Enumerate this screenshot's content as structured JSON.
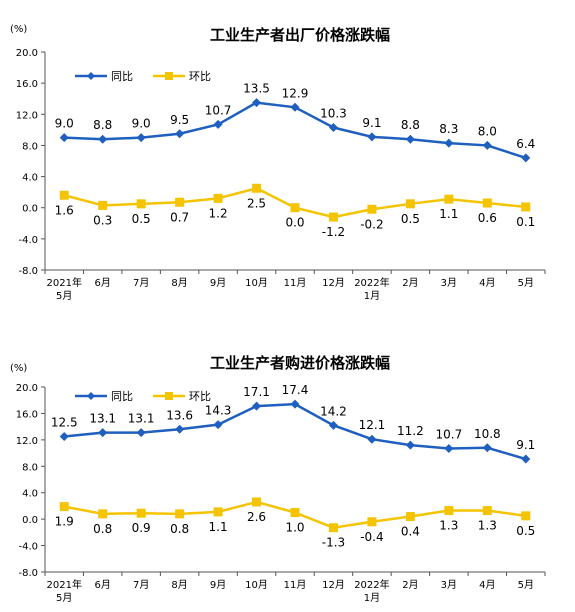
{
  "chart_data": [
    {
      "type": "line",
      "title": "工业生产者出厂价格涨跌幅",
      "ylabel": "(%)",
      "ylim": [
        -8.0,
        20.0
      ],
      "yticks": [
        "20.0",
        "16.0",
        "12.0",
        "8.0",
        "4.0",
        "0.0",
        "-4.0",
        "-8.0"
      ],
      "ytick_values": [
        20,
        16,
        12,
        8,
        4,
        0,
        -4,
        -8
      ],
      "categories": [
        {
          "l1": "2021年",
          "l2": "5月"
        },
        {
          "l1": "6月",
          "l2": ""
        },
        {
          "l1": "7月",
          "l2": ""
        },
        {
          "l1": "8月",
          "l2": ""
        },
        {
          "l1": "9月",
          "l2": ""
        },
        {
          "l1": "10月",
          "l2": ""
        },
        {
          "l1": "11月",
          "l2": ""
        },
        {
          "l1": "12月",
          "l2": ""
        },
        {
          "l1": "2022年",
          "l2": "1月"
        },
        {
          "l1": "2月",
          "l2": ""
        },
        {
          "l1": "3月",
          "l2": ""
        },
        {
          "l1": "4月",
          "l2": ""
        },
        {
          "l1": "5月",
          "l2": ""
        }
      ],
      "legend_position": "top-left",
      "grid": false,
      "series": [
        {
          "name": "同比",
          "color": "#1f5fbf",
          "marker": "diamond",
          "values": [
            9.0,
            8.8,
            9.0,
            9.5,
            10.7,
            13.5,
            12.9,
            10.3,
            9.1,
            8.8,
            8.3,
            8.0,
            6.4
          ],
          "labels": [
            "9.0",
            "8.8",
            "9.0",
            "9.5",
            "10.7",
            "13.5",
            "12.9",
            "10.3",
            "9.1",
            "8.8",
            "8.3",
            "8.0",
            "6.4"
          ]
        },
        {
          "name": "环比",
          "color": "#f5c400",
          "marker": "square",
          "values": [
            1.6,
            0.3,
            0.5,
            0.7,
            1.2,
            2.5,
            0.0,
            -1.2,
            -0.2,
            0.5,
            1.1,
            0.6,
            0.1
          ],
          "labels": [
            "1.6",
            "0.3",
            "0.5",
            "0.7",
            "1.2",
            "2.5",
            "0.0",
            "-1.2",
            "-0.2",
            "0.5",
            "1.1",
            "0.6",
            "0.1"
          ]
        }
      ]
    },
    {
      "type": "line",
      "title": "工业生产者购进价格涨跌幅",
      "ylabel": "(%)",
      "ylim": [
        -8.0,
        20.0
      ],
      "yticks": [
        "20.0",
        "16.0",
        "12.0",
        "8.0",
        "4.0",
        "0.0",
        "-4.0",
        "-8.0"
      ],
      "ytick_values": [
        20,
        16,
        12,
        8,
        4,
        0,
        -4,
        -8
      ],
      "categories": [
        {
          "l1": "2021年",
          "l2": "5月"
        },
        {
          "l1": "6月",
          "l2": ""
        },
        {
          "l1": "7月",
          "l2": ""
        },
        {
          "l1": "8月",
          "l2": ""
        },
        {
          "l1": "9月",
          "l2": ""
        },
        {
          "l1": "10月",
          "l2": ""
        },
        {
          "l1": "11月",
          "l2": ""
        },
        {
          "l1": "12月",
          "l2": ""
        },
        {
          "l1": "2022年",
          "l2": "1月"
        },
        {
          "l1": "2月",
          "l2": ""
        },
        {
          "l1": "3月",
          "l2": ""
        },
        {
          "l1": "4月",
          "l2": ""
        },
        {
          "l1": "5月",
          "l2": ""
        }
      ],
      "legend_position": "top-left",
      "grid": false,
      "series": [
        {
          "name": "同比",
          "color": "#1f5fbf",
          "marker": "diamond",
          "values": [
            12.5,
            13.1,
            13.1,
            13.6,
            14.3,
            17.1,
            17.4,
            14.2,
            12.1,
            11.2,
            10.7,
            10.8,
            9.1
          ],
          "labels": [
            "12.5",
            "13.1",
            "13.1",
            "13.6",
            "14.3",
            "17.1",
            "17.4",
            "14.2",
            "12.1",
            "11.2",
            "10.7",
            "10.8",
            "9.1"
          ]
        },
        {
          "name": "环比",
          "color": "#f5c400",
          "marker": "square",
          "values": [
            1.9,
            0.8,
            0.9,
            0.8,
            1.1,
            2.6,
            1.0,
            -1.3,
            -0.4,
            0.4,
            1.3,
            1.3,
            0.5
          ],
          "labels": [
            "1.9",
            "0.8",
            "0.9",
            "0.8",
            "1.1",
            "2.6",
            "1.0",
            "-1.3",
            "-0.4",
            "0.4",
            "1.3",
            "1.3",
            "0.5"
          ]
        }
      ]
    }
  ]
}
